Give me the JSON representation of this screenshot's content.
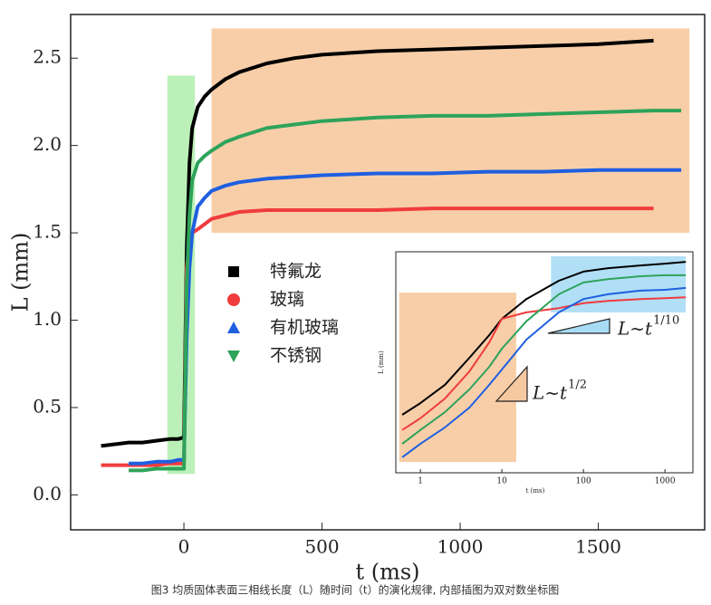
{
  "chart_data": [
    {
      "type": "line",
      "xlabel": "t (ms)",
      "ylabel": "L (mm)",
      "x": [
        -300,
        -250,
        -200,
        -150,
        -100,
        -50,
        -20,
        0,
        10,
        20,
        30,
        50,
        75,
        100,
        150,
        200,
        300,
        400,
        500,
        700,
        900,
        1100,
        1300,
        1500,
        1700,
        1800
      ],
      "series": [
        {
          "name": "特氟龙",
          "color": "#000000",
          "marker": "square",
          "values": [
            0.28,
            0.29,
            0.3,
            0.3,
            0.31,
            0.32,
            0.32,
            0.33,
            1.4,
            1.9,
            2.1,
            2.22,
            2.28,
            2.32,
            2.38,
            2.42,
            2.47,
            2.5,
            2.52,
            2.54,
            2.55,
            2.56,
            2.57,
            2.58,
            2.6,
            null
          ]
        },
        {
          "name": "玻璃",
          "color": "#f03c3c",
          "marker": "circle",
          "values": [
            0.17,
            0.17,
            0.17,
            0.17,
            0.17,
            0.18,
            0.18,
            0.18,
            1.3,
            1.45,
            1.5,
            1.52,
            1.55,
            1.58,
            1.6,
            1.62,
            1.63,
            1.63,
            1.63,
            1.63,
            1.64,
            1.64,
            1.64,
            1.64,
            1.64,
            null
          ]
        },
        {
          "name": "有机玻璃",
          "color": "#1f5fe0",
          "marker": "triangle-up",
          "values": [
            null,
            null,
            0.18,
            0.18,
            0.19,
            0.19,
            0.2,
            0.2,
            0.9,
            1.3,
            1.5,
            1.65,
            1.7,
            1.74,
            1.77,
            1.79,
            1.81,
            1.82,
            1.83,
            1.84,
            1.84,
            1.85,
            1.85,
            1.86,
            1.86,
            1.86
          ]
        },
        {
          "name": "不锈钢",
          "color": "#2ea35a",
          "marker": "triangle-down",
          "values": [
            null,
            null,
            0.14,
            0.14,
            0.15,
            0.15,
            0.15,
            0.15,
            1.2,
            1.6,
            1.8,
            1.9,
            1.94,
            1.97,
            2.02,
            2.05,
            2.1,
            2.12,
            2.14,
            2.16,
            2.17,
            2.17,
            2.18,
            2.19,
            2.2,
            2.2
          ]
        }
      ],
      "xlim": [
        -410,
        1885
      ],
      "ylim": [
        -0.2,
        2.75
      ],
      "xticks": [
        0,
        500,
        1000,
        1500
      ],
      "yticks": [
        {
          "value": 0,
          "label": "0.0"
        },
        0.5,
        {
          "value": 1,
          "label": "1.0"
        },
        1.5,
        {
          "value": 2,
          "label": "2.0"
        },
        2.5
      ],
      "legend": "center",
      "shaded_regions": [
        {
          "xlim": [
            -60,
            40
          ],
          "ylim": [
            0.12,
            2.4
          ],
          "color": "#b4f0b0"
        },
        {
          "xlim": [
            100,
            1830
          ],
          "ylim": [
            1.5,
            2.67
          ],
          "color": "#f7c9a0"
        }
      ]
    },
    {
      "type": "line",
      "xlabel": "t (ms)",
      "ylabel": "L (mm)",
      "xscale": "log",
      "yscale": "log",
      "x": [
        0.6,
        1,
        2,
        4,
        7,
        10,
        20,
        50,
        100,
        200,
        500,
        1000,
        1800
      ],
      "series": [
        {
          "color": "#000000",
          "values": [
            0.244,
            0.292,
            0.387,
            0.587,
            0.832,
            1.07,
            1.45,
            1.92,
            2.21,
            2.33,
            2.43,
            2.5,
            2.57
          ]
        },
        {
          "color": "#f03c3c",
          "values": [
            0.193,
            0.231,
            0.313,
            0.476,
            0.744,
            1.07,
            1.18,
            1.26,
            1.36,
            1.41,
            1.45,
            1.47,
            1.49
          ]
        },
        {
          "color": "#2ea35a",
          "values": [
            0.156,
            0.193,
            0.254,
            0.361,
            0.511,
            0.675,
            1.03,
            1.56,
            1.87,
            1.97,
            2.06,
            2.09,
            2.09
          ]
        },
        {
          "color": "#1f5fe0",
          "values": [
            0.127,
            0.156,
            0.201,
            0.273,
            0.387,
            0.49,
            0.776,
            1.18,
            1.45,
            1.56,
            1.65,
            1.67,
            1.72
          ]
        }
      ],
      "xlim": [
        0.5,
        2200
      ],
      "ylim": [
        0.1,
        3
      ],
      "xticks": [
        1,
        10,
        100,
        1000
      ],
      "shaded_regions": [
        {
          "xlim": [
            0.55,
            15
          ],
          "ylim": [
            0.118,
            1.6
          ],
          "color": "#f7c9a0"
        },
        {
          "xlim": [
            40,
            1800
          ],
          "ylim": [
            1.18,
            2.8
          ],
          "color": "#a8dcf5"
        }
      ],
      "annotations": [
        {
          "text": "L~t",
          "exponent": "1/2"
        },
        {
          "text": "L~t",
          "exponent": "1/10"
        }
      ]
    }
  ],
  "caption": "图3 均质固体表面三相线长度（L）随时间（t）的演化规律, 内部插图为双对数坐标图"
}
